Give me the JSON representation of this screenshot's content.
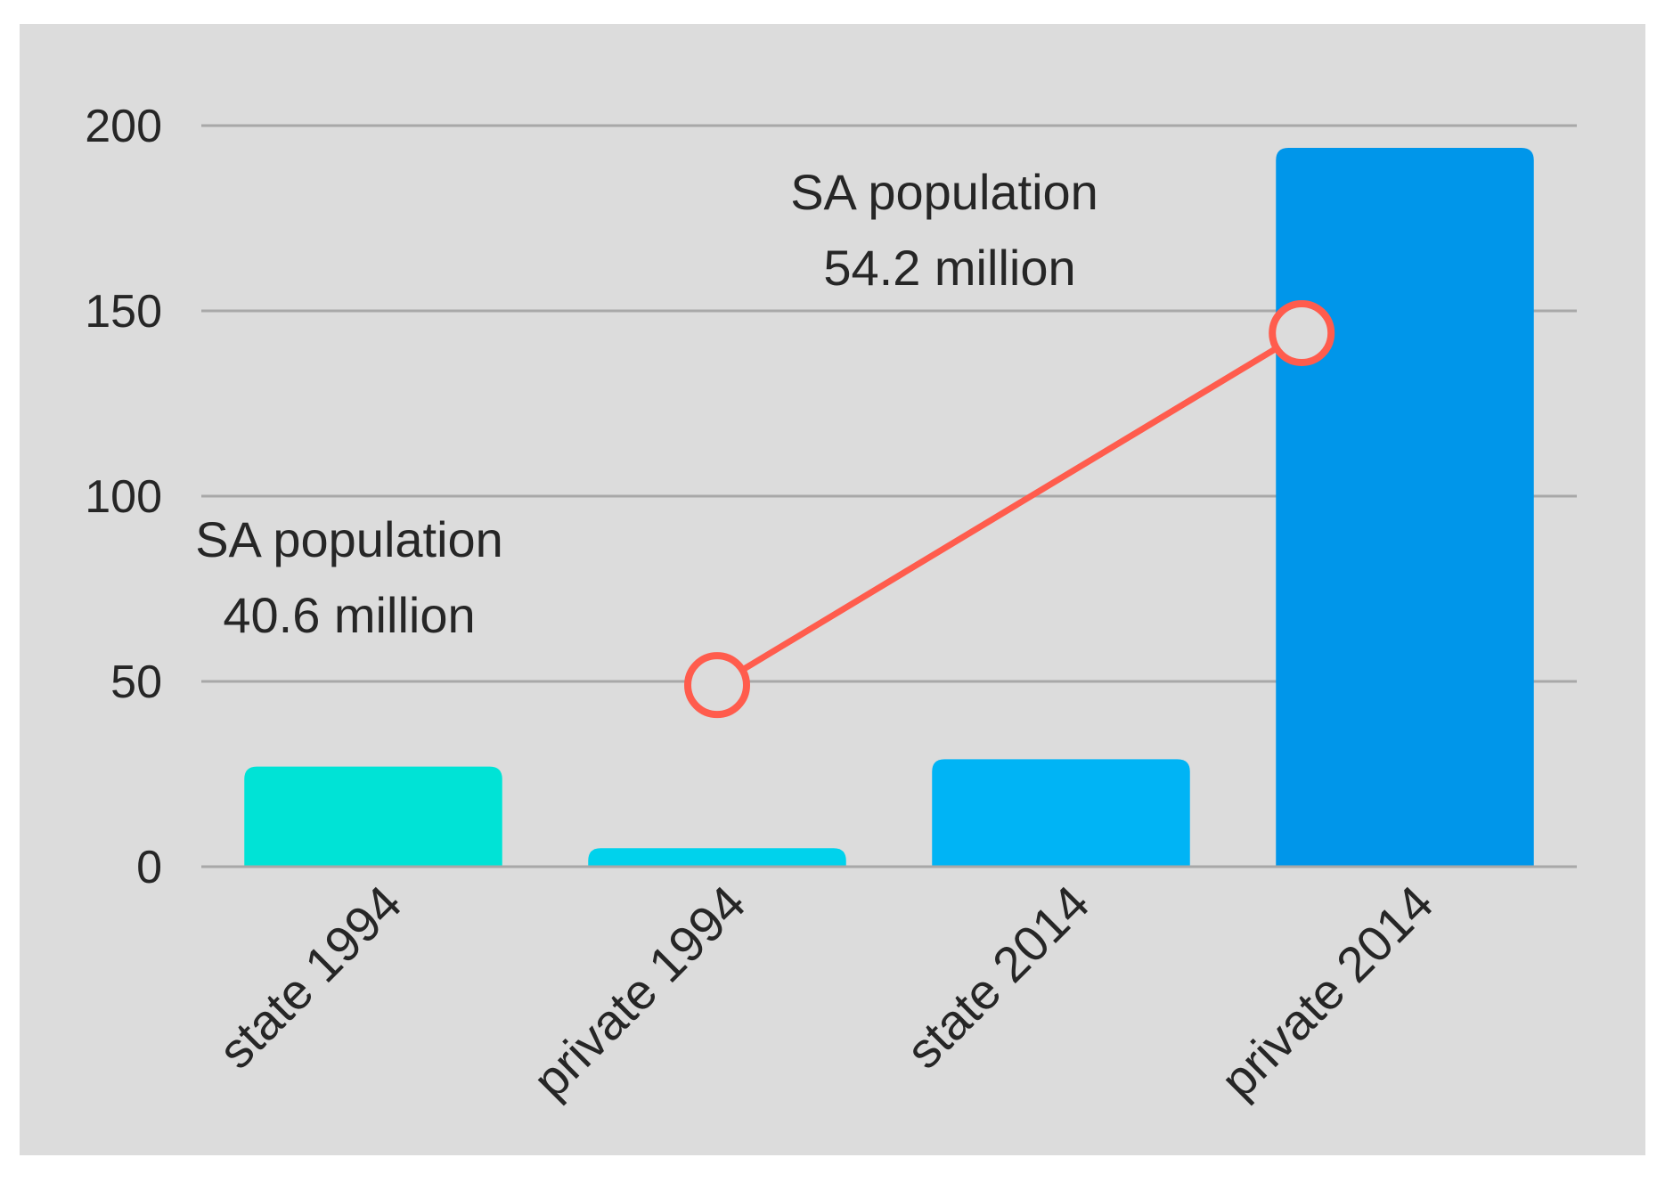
{
  "chart_data": {
    "type": "bar",
    "title": "",
    "xlabel": "",
    "ylabel": "",
    "categories": [
      "state 1994",
      "private 1994",
      "state 2014",
      "private 2014"
    ],
    "values": [
      27,
      5,
      29,
      194
    ],
    "bar_colors": [
      "#00E3D6",
      "#00D2EC",
      "#00B4F5",
      "#0096EA"
    ],
    "ylim": [
      0,
      200
    ],
    "yticks": [
      0,
      50,
      100,
      150,
      200
    ],
    "grid": true,
    "overlay_line": {
      "type": "line",
      "color": "#FF5C4D",
      "points": [
        {
          "x": 1.5,
          "y": 49
        },
        {
          "x": 3.2,
          "y": 144
        }
      ]
    },
    "annotations": [
      {
        "line1": "SA population",
        "line2": "40.6 million"
      },
      {
        "line1": "SA population",
        "line2": "54.2 million"
      }
    ]
  },
  "colors": {
    "plot_background": "#DCDCDC",
    "gridline": "#A8A8A8",
    "text": "#262626"
  }
}
